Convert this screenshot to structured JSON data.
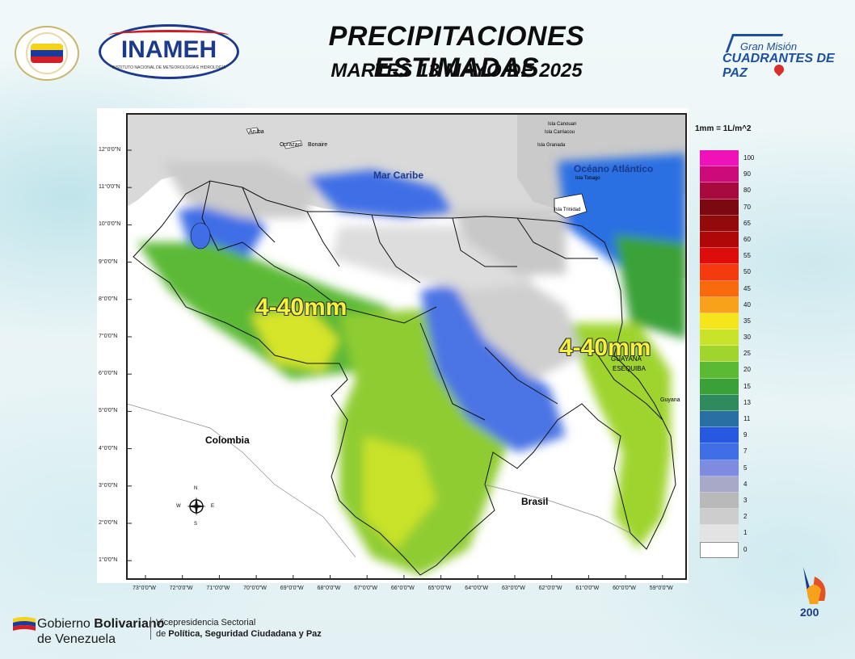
{
  "header": {
    "title": "PRECIPITACIONES ESTIMADAS",
    "subtitle": "MARTES 13 MAYO DE 2025"
  },
  "logos": {
    "inameh": "INAMEH",
    "inameh_subtitle": "INSTITUTO NACIONAL DE METEOROLOGÍA E HIDROLOGÍA",
    "gran_mision_line1": "Gran Misión",
    "gran_mision_line2": "CUADRANTES DE PAZ"
  },
  "map": {
    "unit_note": "1mm = 1L/m^2",
    "x_ticks": [
      "73°0'0\"W",
      "72°0'0\"W",
      "71°0'0\"W",
      "70°0'0\"W",
      "69°0'0\"W",
      "68°0'0\"W",
      "67°0'0\"W",
      "66°0'0\"W",
      "65°0'0\"W",
      "64°0'0\"W",
      "63°0'0\"W",
      "62°0'0\"W",
      "61°0'0\"W",
      "60°0'0\"W",
      "59°0'0\"W"
    ],
    "y_ticks": [
      "12°0'0\"N",
      "11°0'0\"N",
      "10°0'0\"N",
      "9°0'0\"N",
      "8°0'0\"N",
      "7°0'0\"N",
      "6°0'0\"N",
      "5°0'0\"N",
      "4°0'0\"N",
      "3°0'0\"N",
      "2°0'0\"N",
      "1°0'0\"N"
    ],
    "place_labels": {
      "aruba": "Aruba",
      "curazao": "Curazao",
      "bonaire": "Bonaire",
      "mar_caribe": "Mar Caribe",
      "oceano": "Océano Atlántico",
      "canouan": "Isla Canouan",
      "carriacou": "Isla Carriacou",
      "granada": "Isla Granada",
      "tobago": "Isla Tobago",
      "trinidad": "Isla Trinidad",
      "colombia": "Colombia",
      "brasil": "Brasil",
      "guyana": "Guyana",
      "esequiba": "ESEQUIBA",
      "guayana": "GUAYANA"
    },
    "range_labels": {
      "west": "4-40mm",
      "east": "4-40mm"
    },
    "compass": {
      "n": "N",
      "s": "S",
      "e": "E",
      "w": "W"
    }
  },
  "legend": [
    {
      "value": "100",
      "color": "#ee12b8"
    },
    {
      "value": "90",
      "color": "#cc0a7a"
    },
    {
      "value": "80",
      "color": "#a8093e"
    },
    {
      "value": "70",
      "color": "#7a0a10"
    },
    {
      "value": "65",
      "color": "#930a0a"
    },
    {
      "value": "60",
      "color": "#b00808"
    },
    {
      "value": "55",
      "color": "#df0c0c"
    },
    {
      "value": "50",
      "color": "#f63a0f"
    },
    {
      "value": "45",
      "color": "#f96a0c"
    },
    {
      "value": "40",
      "color": "#f7a21a"
    },
    {
      "value": "35",
      "color": "#f4e51c"
    },
    {
      "value": "30",
      "color": "#c9e22a"
    },
    {
      "value": "25",
      "color": "#a2d42e"
    },
    {
      "value": "20",
      "color": "#5bb934"
    },
    {
      "value": "15",
      "color": "#3aa139"
    },
    {
      "value": "13",
      "color": "#2f8a5e"
    },
    {
      "value": "11",
      "color": "#2a6fa3"
    },
    {
      "value": "9",
      "color": "#2658e0"
    },
    {
      "value": "7",
      "color": "#3f6ee6"
    },
    {
      "value": "5",
      "color": "#7d8be0"
    },
    {
      "value": "4",
      "color": "#a8a9c8"
    },
    {
      "value": "3",
      "color": "#b9b9b9"
    },
    {
      "value": "2",
      "color": "#cdcdcd"
    },
    {
      "value": "1",
      "color": "#e3e3e3"
    },
    {
      "value": "0",
      "color": "#ffffff"
    }
  ],
  "footer": {
    "gov_line1_a": "Gobierno ",
    "gov_line1_b": "Bolivariano",
    "gov_line2": "de Venezuela",
    "vp_line1": "Vicepresidencia Sectorial",
    "vp_line2_a": "de ",
    "vp_line2_b": "Política, Seguridad Ciudadana y Paz",
    "anniv": "200"
  }
}
